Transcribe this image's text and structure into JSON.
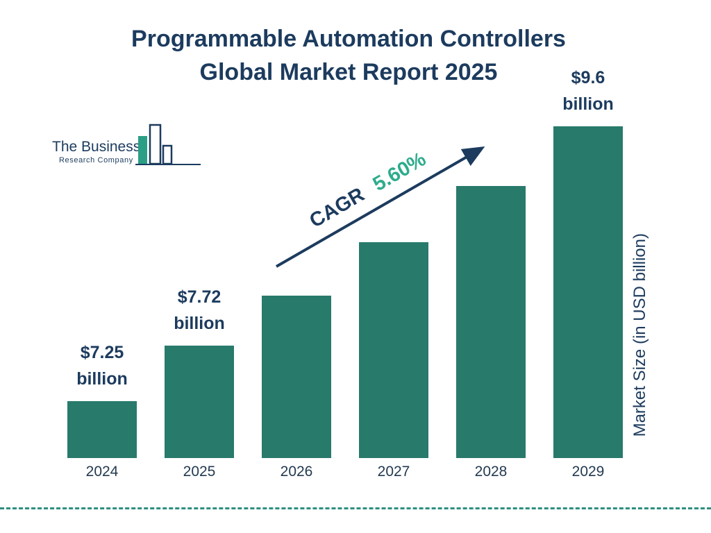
{
  "title": {
    "line1": "Programmable Automation Controllers",
    "line2": "Global Market Report 2025"
  },
  "logo": {
    "name_line1": "The Business",
    "name_line2": "Research Company"
  },
  "annotation": {
    "cagr_label": "CAGR",
    "cagr_value": "5.60%"
  },
  "ylabel": "Market Size (in USD billion)",
  "colors": {
    "bar": "#287a6b",
    "navy": "#1c3b5e",
    "cagr_green": "#2eac8d",
    "dashed_line": "#2e8f80",
    "logo_teal": "#2b9f85"
  },
  "chart_data": {
    "type": "bar",
    "title": "Programmable Automation Controllers Global Market Report 2025",
    "categories": [
      "2024",
      "2025",
      "2026",
      "2027",
      "2028",
      "2029"
    ],
    "values": [
      7.25,
      7.72,
      8.15,
      8.61,
      9.09,
      9.6
    ],
    "bar_labels": [
      {
        "line1": "$7.25",
        "line2": "billion"
      },
      {
        "line1": "$7.72",
        "line2": "billion"
      },
      null,
      null,
      null,
      {
        "line1": "$9.6",
        "line2": "billion"
      }
    ],
    "xlabel": "",
    "ylabel": "Market Size (in USD billion)",
    "ylim": [
      6.76,
      9.6
    ],
    "cagr": "5.60%",
    "legend": "none",
    "grid": "off"
  }
}
